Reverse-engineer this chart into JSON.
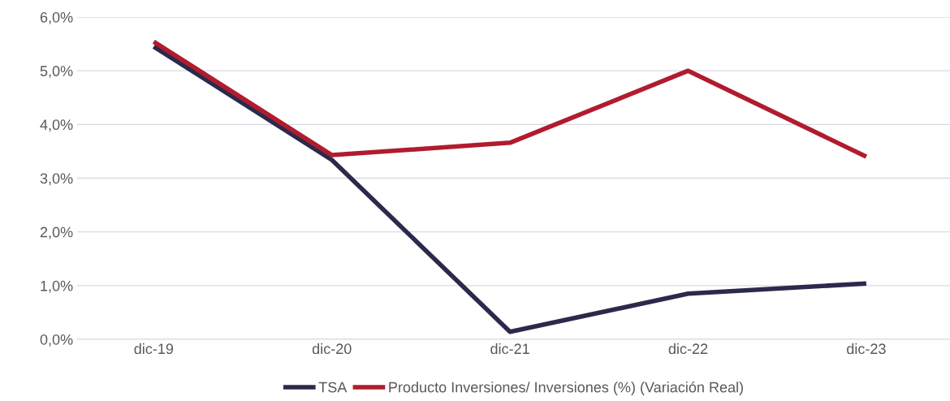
{
  "chart_data": {
    "type": "line",
    "categories": [
      "dic-19",
      "dic-20",
      "dic-21",
      "dic-22",
      "dic-23"
    ],
    "series": [
      {
        "name": "TSA",
        "color": "#2b2a4c",
        "values": [
          5.45,
          3.34,
          0.14,
          0.85,
          1.04
        ]
      },
      {
        "name": "Producto Inversiones/ Inversiones (%) (Variación Real)",
        "color": "#b01c2e",
        "values": [
          5.54,
          3.43,
          3.66,
          5.0,
          3.4
        ]
      }
    ],
    "ylim": [
      0,
      6
    ],
    "yticks": [
      {
        "value": 0,
        "label": "0,0%"
      },
      {
        "value": 1,
        "label": "1,0%"
      },
      {
        "value": 2,
        "label": "2,0%"
      },
      {
        "value": 3,
        "label": "3,0%"
      },
      {
        "value": 4,
        "label": "4,0%"
      },
      {
        "value": 5,
        "label": "5,0%"
      },
      {
        "value": 6,
        "label": "6,0%"
      }
    ],
    "grid": "y",
    "legend": "bottom",
    "marker": "none",
    "line_style": "solid"
  }
}
